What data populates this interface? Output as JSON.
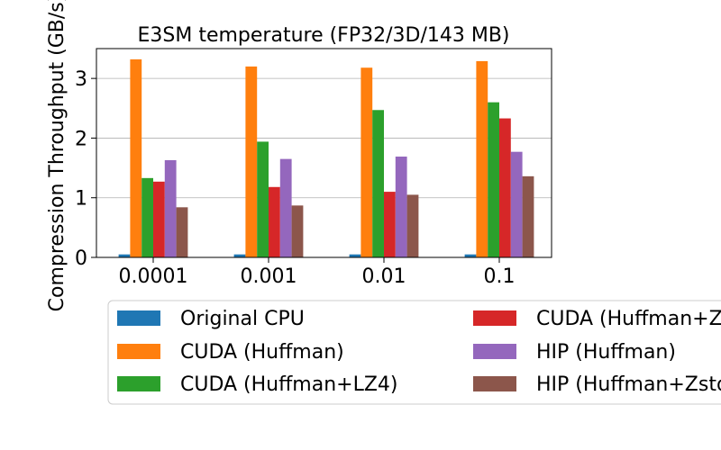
{
  "chart_data": {
    "type": "bar",
    "title": "E3SM temperature (FP32/3D/143 MB)",
    "xlabel": "",
    "ylabel": "Compression Throughput (GB/s)",
    "categories": [
      "0.0001",
      "0.001",
      "0.01",
      "0.1"
    ],
    "ylim": [
      0,
      3.5
    ],
    "yticks": [
      0,
      1,
      2,
      3
    ],
    "grid": "y",
    "legend_placement": "bottom",
    "series": [
      {
        "name": "Original CPU",
        "color": "#1f77b4",
        "values": [
          0.05,
          0.05,
          0.05,
          0.05
        ]
      },
      {
        "name": "CUDA (Huffman)",
        "color": "#ff7f0e",
        "values": [
          3.32,
          3.2,
          3.18,
          3.29
        ]
      },
      {
        "name": "CUDA (Huffman+LZ4)",
        "color": "#2ca02c",
        "values": [
          1.33,
          1.94,
          2.47,
          2.6
        ]
      },
      {
        "name": "CUDA (Huffman+Zstd)",
        "color": "#d62728",
        "values": [
          1.27,
          1.18,
          1.1,
          2.33
        ]
      },
      {
        "name": "HIP (Huffman)",
        "color": "#9467bd",
        "values": [
          1.63,
          1.65,
          1.69,
          1.77
        ]
      },
      {
        "name": "HIP (Huffman+Zstd)",
        "color": "#8c564b",
        "values": [
          0.84,
          0.87,
          1.05,
          1.36
        ]
      }
    ]
  }
}
